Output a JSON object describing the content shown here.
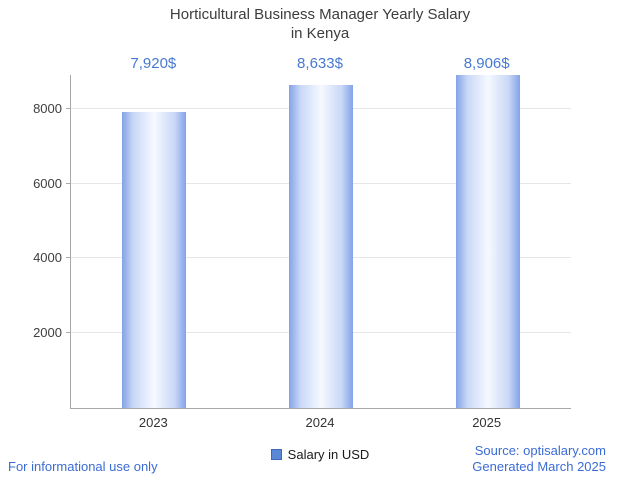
{
  "title": {
    "line1": "Horticultural Business Manager Yearly Salary",
    "line2": "in Kenya"
  },
  "chart_data": {
    "type": "bar",
    "title": "Horticultural Business Manager Yearly Salary in Kenya",
    "categories": [
      "2023",
      "2024",
      "2025"
    ],
    "values": [
      7920,
      8633,
      8906
    ],
    "value_labels": [
      "7,920$",
      "8,633$",
      "8,906$"
    ],
    "series_name": "Salary in USD",
    "xlabel": "",
    "ylabel": "",
    "yticks": [
      2000,
      4000,
      6000,
      8000
    ],
    "ylim": [
      0,
      8906
    ],
    "grid": true,
    "legend": {
      "label": "Salary in USD",
      "position": "bottom"
    }
  },
  "footer": {
    "left": "For informational use only",
    "source": "Source: optisalary.com",
    "generated": "Generated March 2025"
  },
  "colors": {
    "bar_edge": "#83a3e8",
    "bar_center": "#f6f9ff",
    "value_label_text": "#4779d2",
    "footer_text": "#3b6cd4",
    "legend_marker": "#5b87d7",
    "title_text": "#3d3d3d",
    "axis_line": "#a8a8a8",
    "gridline": "#e6e6e6"
  }
}
